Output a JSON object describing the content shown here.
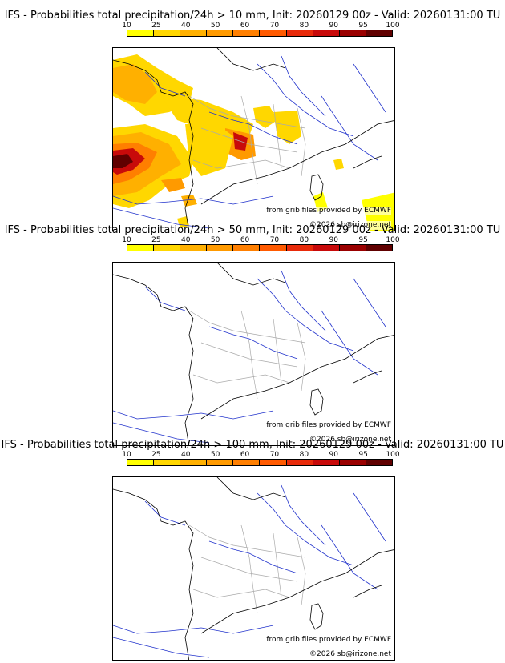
{
  "panels": [
    {
      "title": "IFS - Probabilities total precipitation/24h > 10 mm, Init: 20260129 00z - Valid: 20260131:00 TU",
      "source_note": "from grib files provided by ECMWF",
      "copyright": "©2026 sb@irizone.net"
    },
    {
      "title": "IFS - Probabilities total precipitation/24h > 50 mm, Init: 20260129 00z - Valid: 20260131:00 TU",
      "source_note": "from grib files provided by ECMWF",
      "copyright": "©2026 sb@irizone.net"
    },
    {
      "title": "IFS - Probabilities total precipitation/24h > 100 mm, Init: 20260129 00z - Valid: 20260131:00 TU",
      "source_note": "from grib files provided by ECMWF",
      "copyright": "©2026 sb@irizone.net"
    }
  ],
  "colorbar": {
    "ticks": [
      "10",
      "25",
      "40",
      "50",
      "60",
      "70",
      "80",
      "90",
      "95",
      "100"
    ],
    "colors": [
      "#ffff00",
      "#ffd700",
      "#ffb000",
      "#ff9a00",
      "#ff7f00",
      "#ff5a00",
      "#e82a0a",
      "#c80a0a",
      "#9a0000",
      "#600000"
    ]
  },
  "map_colors": {
    "rivers": "#2233cc",
    "borders": "#aaaaaa",
    "coast": "#000000"
  }
}
